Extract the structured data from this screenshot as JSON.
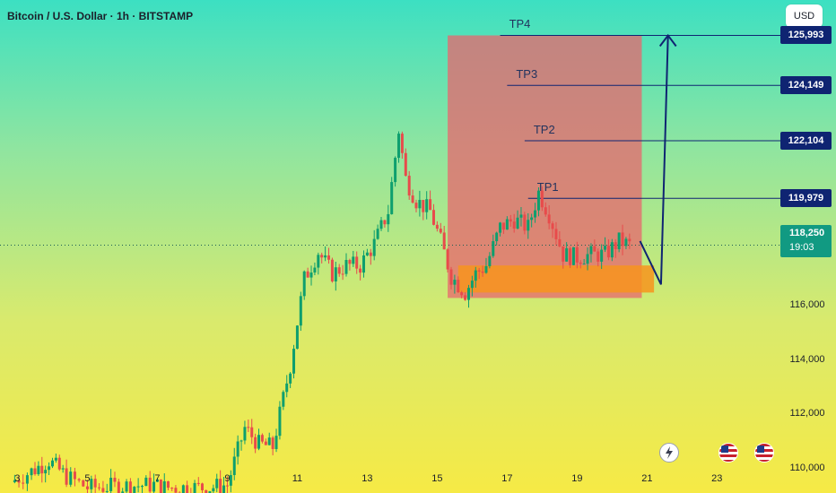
{
  "header": {
    "title": "Bitcoin / U.S. Dollar · 1h · BITSTAMP"
  },
  "currency_button": {
    "label": "USD"
  },
  "current": {
    "price": "118,250",
    "countdown": "19:03"
  },
  "targets": [
    {
      "label": "TP1",
      "price_label": "119,979",
      "value": 119979
    },
    {
      "label": "TP2",
      "price_label": "122,104",
      "value": 122104
    },
    {
      "label": "TP3",
      "price_label": "124,149",
      "value": 124149
    },
    {
      "label": "TP4",
      "price_label": "125,993",
      "value": 125993
    }
  ],
  "icons": [
    "lightning-event-icon",
    "us-flag-event-icon",
    "us-flag-event-icon"
  ],
  "colors": {
    "up": "#0e9f6e",
    "down": "#e84b4b",
    "zone": "#e8656e",
    "support": "#f7941d",
    "target": "#0f2472"
  },
  "chart_data": {
    "type": "candlestick",
    "title": "Bitcoin / U.S. Dollar · 1h · BITSTAMP",
    "y_ticks": [
      110000,
      112000,
      114000,
      116000,
      118250,
      119979,
      122104,
      124149,
      125993
    ],
    "y_tick_labels": [
      "110,000",
      "112,000",
      "114,000",
      "116,000",
      "118,250",
      "119,979",
      "122,104",
      "124,149",
      "125,993"
    ],
    "ylim": [
      109100,
      127300
    ],
    "x_ticks": [
      "3",
      "5",
      "7",
      "9",
      "11",
      "13",
      "15",
      "17",
      "19",
      "21",
      "23"
    ],
    "xlim": [
      2.5,
      24.3
    ],
    "grid": false,
    "series": [
      {
        "x": [
          2.8,
          3.4,
          3.9,
          4.4,
          5.0,
          6.9,
          7.2,
          8.5,
          9.0,
          9.5,
          9.9,
          10.3,
          10.8,
          11.2,
          11.6,
          12.0,
          12.4,
          12.8,
          13.2,
          13.6,
          13.9,
          14.1,
          14.4,
          14.8,
          15.1,
          15.4,
          15.8,
          16.1,
          16.4,
          16.8,
          17.2,
          17.6,
          17.9,
          18.2,
          18.6,
          19.0,
          19.4,
          19.8,
          20.2,
          20.5
        ],
        "y": [
          109500,
          109900,
          110300,
          109700,
          109300,
          109400,
          109300,
          109300,
          109400,
          111500,
          110900,
          110800,
          113800,
          117000,
          118000,
          117200,
          117500,
          117500,
          118300,
          119500,
          122500,
          120700,
          119900,
          119500,
          118400,
          117100,
          116500,
          117200,
          117500,
          118900,
          119200,
          118900,
          120200,
          119400,
          117900,
          117800,
          117900,
          117900,
          118400,
          118250
        ]
      }
    ],
    "annotations": {
      "target_zone": {
        "x": [
          15.3,
          20.85
        ],
        "y": [
          116300,
          125993
        ]
      },
      "support_zone": {
        "x": [
          15.6,
          21.2
        ],
        "y": [
          116500,
          117500
        ]
      },
      "projection": {
        "x": [
          20.8,
          21.4,
          21.6
        ],
        "y": [
          118400,
          116800,
          125993
        ]
      },
      "target_lines_start_x": [
        17.6,
        17.5,
        17.0,
        16.8
      ]
    }
  }
}
